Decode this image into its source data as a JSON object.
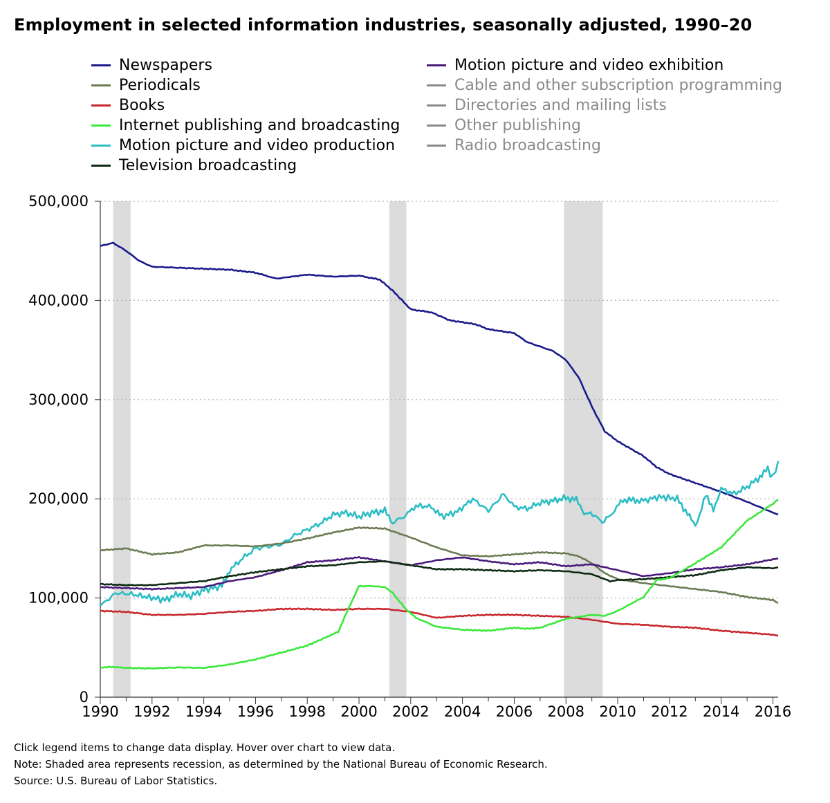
{
  "title": "Employment in selected information industries, seasonally adjusted, 1990–20",
  "footnotes": {
    "instruction": "Click legend items to change data display. Hover over chart to view data.",
    "note": "Note: Shaded area represents recession, as determined by the National Bureau of Economic Research.",
    "source": "Source: U.S. Bureau of Labor Statistics."
  },
  "legend": {
    "left": [
      {
        "label": "Newspapers",
        "color": "#1a1a8c",
        "active": true
      },
      {
        "label": "Periodicals",
        "color": "#6b7a52",
        "active": true
      },
      {
        "label": "Books",
        "color": "#c8282d",
        "active": true
      },
      {
        "label": "Internet publishing and broadcasting",
        "color": "#3ae83a",
        "active": true
      },
      {
        "label": "Motion picture and video production",
        "color": "#2bbdc4",
        "active": true
      },
      {
        "label": "Television broadcasting",
        "color": "#0f2a12",
        "active": true
      }
    ],
    "right": [
      {
        "label": "Motion picture and video exhibition",
        "color": "#4a1a7a",
        "active": true
      },
      {
        "label": "Cable and other subscription programming",
        "color": "#8a8a8a",
        "active": false
      },
      {
        "label": "Directories and mailing lists",
        "color": "#8a8a8a",
        "active": false
      },
      {
        "label": "Other publishing",
        "color": "#8a8a8a",
        "active": false
      },
      {
        "label": "Radio broadcasting",
        "color": "#8a8a8a",
        "active": false
      }
    ]
  },
  "chart_data": {
    "type": "line",
    "ylim": [
      0,
      500000
    ],
    "xlim": [
      1990,
      2016.2
    ],
    "y_ticks": [
      0,
      100000,
      200000,
      300000,
      400000,
      500000
    ],
    "y_tick_labels": [
      "0",
      "100,000",
      "200,000",
      "300,000",
      "400,000",
      "500,000"
    ],
    "x_ticks": [
      1990,
      1992,
      1994,
      1996,
      1998,
      2000,
      2002,
      2004,
      2006,
      2008,
      2010,
      2012,
      2014,
      2016
    ],
    "grid": "horizontal-dotted",
    "recessions": [
      [
        1990.5,
        1991.17
      ],
      [
        2001.17,
        2001.83
      ],
      [
        2007.92,
        2009.42
      ]
    ],
    "series": [
      {
        "name": "Newspapers",
        "color": "#1a1a8c",
        "points": [
          [
            1990,
            455000
          ],
          [
            1990.5,
            458000
          ],
          [
            1991,
            450000
          ],
          [
            1991.5,
            440000
          ],
          [
            1992,
            434000
          ],
          [
            1993,
            433000
          ],
          [
            1994,
            432000
          ],
          [
            1995,
            431000
          ],
          [
            1996,
            428000
          ],
          [
            1996.8,
            422000
          ],
          [
            1998,
            426000
          ],
          [
            1999,
            424000
          ],
          [
            2000,
            425000
          ],
          [
            2000.8,
            421000
          ],
          [
            2001.3,
            410000
          ],
          [
            2002,
            391000
          ],
          [
            2002.8,
            388000
          ],
          [
            2003.5,
            380000
          ],
          [
            2004.5,
            376000
          ],
          [
            2005,
            371000
          ],
          [
            2006,
            367000
          ],
          [
            2006.5,
            358000
          ],
          [
            2007.5,
            349000
          ],
          [
            2008,
            340000
          ],
          [
            2008.5,
            322000
          ],
          [
            2009,
            293000
          ],
          [
            2009.5,
            268000
          ],
          [
            2010,
            258000
          ],
          [
            2011,
            243000
          ],
          [
            2011.5,
            232000
          ],
          [
            2012,
            225000
          ],
          [
            2013,
            216000
          ],
          [
            2014,
            207000
          ],
          [
            2015,
            197000
          ],
          [
            2016,
            186000
          ],
          [
            2016.2,
            184000
          ]
        ]
      },
      {
        "name": "Motion picture and video production",
        "color": "#2bbdc4",
        "points": [
          [
            1990,
            92000
          ],
          [
            1990.6,
            105000
          ],
          [
            1991.2,
            104000
          ],
          [
            1991.8,
            101000
          ],
          [
            1992.5,
            98000
          ],
          [
            1993,
            104000
          ],
          [
            1993.5,
            102000
          ],
          [
            1994,
            108000
          ],
          [
            1994.7,
            112000
          ],
          [
            1995,
            128000
          ],
          [
            1995.5,
            140000
          ],
          [
            1996,
            150000
          ],
          [
            1997,
            154000
          ],
          [
            1997.5,
            163000
          ],
          [
            1998,
            169000
          ],
          [
            1998.5,
            175000
          ],
          [
            1999,
            184000
          ],
          [
            1999.5,
            186000
          ],
          [
            2000,
            182000
          ],
          [
            2000.5,
            186000
          ],
          [
            2001,
            188000
          ],
          [
            2001.3,
            176000
          ],
          [
            2001.8,
            183000
          ],
          [
            2002.2,
            193000
          ],
          [
            2002.8,
            192000
          ],
          [
            2003.2,
            182000
          ],
          [
            2003.8,
            187000
          ],
          [
            2004.4,
            200000
          ],
          [
            2005,
            188000
          ],
          [
            2005.6,
            205000
          ],
          [
            2006,
            192000
          ],
          [
            2006.5,
            190000
          ],
          [
            2007,
            196000
          ],
          [
            2007.5,
            198000
          ],
          [
            2008,
            201000
          ],
          [
            2008.4,
            199000
          ],
          [
            2008.7,
            186000
          ],
          [
            2009.2,
            183000
          ],
          [
            2009.4,
            175000
          ],
          [
            2009.8,
            186000
          ],
          [
            2010.2,
            199000
          ],
          [
            2011,
            198000
          ],
          [
            2011.6,
            202000
          ],
          [
            2012.3,
            200000
          ],
          [
            2012.7,
            185000
          ],
          [
            2013,
            172000
          ],
          [
            2013.4,
            203000
          ],
          [
            2013.7,
            190000
          ],
          [
            2014,
            210000
          ],
          [
            2014.5,
            205000
          ],
          [
            2015,
            212000
          ],
          [
            2015.5,
            222000
          ],
          [
            2015.8,
            230000
          ],
          [
            2016,
            221000
          ],
          [
            2016.2,
            238000
          ]
        ]
      },
      {
        "name": "Periodicals",
        "color": "#6b7a52",
        "points": [
          [
            1990,
            148000
          ],
          [
            1991,
            150000
          ],
          [
            1992,
            144000
          ],
          [
            1993,
            146000
          ],
          [
            1994,
            153000
          ],
          [
            1995,
            153000
          ],
          [
            1996,
            152000
          ],
          [
            1997,
            155000
          ],
          [
            1998,
            160000
          ],
          [
            1999,
            166000
          ],
          [
            2000,
            171000
          ],
          [
            2001,
            170000
          ],
          [
            2002,
            161000
          ],
          [
            2003,
            151000
          ],
          [
            2004,
            143000
          ],
          [
            2005,
            142000
          ],
          [
            2006,
            144000
          ],
          [
            2007,
            146000
          ],
          [
            2008,
            145000
          ],
          [
            2008.5,
            142000
          ],
          [
            2009,
            135000
          ],
          [
            2009.5,
            125000
          ],
          [
            2010,
            119000
          ],
          [
            2011,
            115000
          ],
          [
            2012,
            112000
          ],
          [
            2013,
            109000
          ],
          [
            2014,
            106000
          ],
          [
            2015,
            101000
          ],
          [
            2016,
            98000
          ],
          [
            2016.2,
            95000
          ]
        ]
      },
      {
        "name": "Motion picture and video exhibition",
        "color": "#4a1a7a",
        "points": [
          [
            1990,
            111000
          ],
          [
            1991,
            110000
          ],
          [
            1992,
            109000
          ],
          [
            1993,
            110000
          ],
          [
            1994,
            111000
          ],
          [
            1995,
            117000
          ],
          [
            1996,
            121000
          ],
          [
            1997,
            128000
          ],
          [
            1998,
            136000
          ],
          [
            1999,
            138000
          ],
          [
            2000,
            141000
          ],
          [
            2001,
            137000
          ],
          [
            2002,
            133000
          ],
          [
            2003,
            138000
          ],
          [
            2004,
            141000
          ],
          [
            2005,
            137000
          ],
          [
            2006,
            134000
          ],
          [
            2007,
            136000
          ],
          [
            2008,
            132000
          ],
          [
            2009,
            134000
          ],
          [
            2010,
            128000
          ],
          [
            2011,
            122000
          ],
          [
            2012,
            125000
          ],
          [
            2013,
            129000
          ],
          [
            2014,
            131000
          ],
          [
            2015,
            134000
          ],
          [
            2016,
            139000
          ],
          [
            2016.2,
            140000
          ]
        ]
      },
      {
        "name": "Television broadcasting",
        "color": "#0f2a12",
        "points": [
          [
            1990,
            114000
          ],
          [
            1991,
            113000
          ],
          [
            1992,
            113000
          ],
          [
            1993,
            115000
          ],
          [
            1994,
            117000
          ],
          [
            1995,
            122000
          ],
          [
            1996,
            126000
          ],
          [
            1997,
            129000
          ],
          [
            1998,
            132000
          ],
          [
            1999,
            133000
          ],
          [
            2000,
            136000
          ],
          [
            2001,
            137000
          ],
          [
            2002,
            133000
          ],
          [
            2003,
            129000
          ],
          [
            2004,
            129000
          ],
          [
            2005,
            128000
          ],
          [
            2006,
            127000
          ],
          [
            2007,
            128000
          ],
          [
            2008,
            127000
          ],
          [
            2009,
            124000
          ],
          [
            2009.7,
            117000
          ],
          [
            2010,
            118000
          ],
          [
            2011,
            119000
          ],
          [
            2012,
            121000
          ],
          [
            2013,
            123000
          ],
          [
            2014,
            128000
          ],
          [
            2015,
            131000
          ],
          [
            2016,
            130000
          ],
          [
            2016.2,
            131000
          ]
        ]
      },
      {
        "name": "Books",
        "color": "#c8282d",
        "points": [
          [
            1990,
            87000
          ],
          [
            1991,
            86000
          ],
          [
            1992,
            83000
          ],
          [
            1993,
            83000
          ],
          [
            1994,
            84000
          ],
          [
            1995,
            86000
          ],
          [
            1996,
            87000
          ],
          [
            1997,
            89000
          ],
          [
            1998,
            89000
          ],
          [
            1999,
            88000
          ],
          [
            2000,
            89000
          ],
          [
            2001,
            89000
          ],
          [
            2002,
            86000
          ],
          [
            2003,
            80000
          ],
          [
            2004,
            82000
          ],
          [
            2005,
            83000
          ],
          [
            2006,
            83000
          ],
          [
            2007,
            82000
          ],
          [
            2008,
            81000
          ],
          [
            2009,
            78000
          ],
          [
            2010,
            74000
          ],
          [
            2011,
            73000
          ],
          [
            2012,
            71000
          ],
          [
            2013,
            70000
          ],
          [
            2014,
            67000
          ],
          [
            2015,
            65000
          ],
          [
            2016,
            63000
          ],
          [
            2016.2,
            62000
          ]
        ]
      },
      {
        "name": "Internet publishing and broadcasting",
        "color": "#3ae83a",
        "points": [
          [
            1990,
            30000
          ],
          [
            1990.5,
            30500
          ],
          [
            1991,
            29500
          ],
          [
            1992,
            29000
          ],
          [
            1993,
            30000
          ],
          [
            1994,
            29500
          ],
          [
            1995,
            33000
          ],
          [
            1996,
            38000
          ],
          [
            1997,
            45000
          ],
          [
            1998,
            52000
          ],
          [
            1998.7,
            60000
          ],
          [
            1999.2,
            66000
          ],
          [
            1999.6,
            90000
          ],
          [
            2000,
            112000
          ],
          [
            2000.5,
            112000
          ],
          [
            2001,
            111000
          ],
          [
            2001.3,
            105000
          ],
          [
            2001.8,
            89000
          ],
          [
            2002.2,
            80000
          ],
          [
            2003,
            71000
          ],
          [
            2004,
            68000
          ],
          [
            2005,
            67000
          ],
          [
            2006,
            70000
          ],
          [
            2006.5,
            69000
          ],
          [
            2007,
            70000
          ],
          [
            2008,
            79000
          ],
          [
            2009,
            83000
          ],
          [
            2009.5,
            82000
          ],
          [
            2010,
            87000
          ],
          [
            2011,
            101000
          ],
          [
            2011.5,
            118000
          ],
          [
            2012,
            120000
          ],
          [
            2013,
            135000
          ],
          [
            2014,
            151000
          ],
          [
            2015,
            178000
          ],
          [
            2016,
            195000
          ],
          [
            2016.2,
            199000
          ]
        ]
      }
    ]
  }
}
